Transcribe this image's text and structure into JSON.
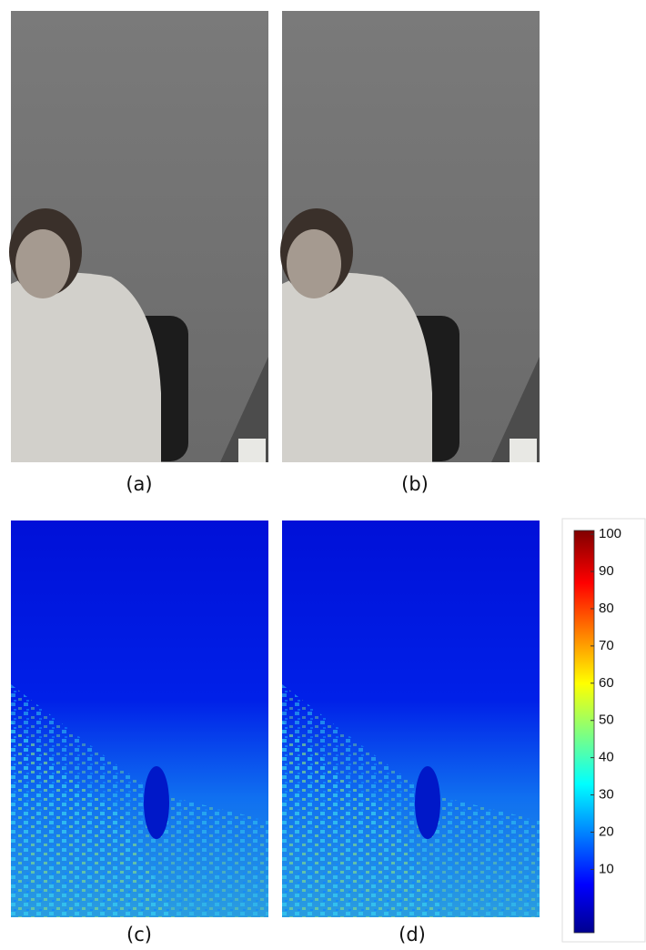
{
  "panels": [
    {
      "label": "(a)"
    },
    {
      "label": "(b)"
    },
    {
      "label": "(c)"
    },
    {
      "label": "(d)"
    }
  ],
  "colorbar": {
    "lim": [
      -7,
      101
    ],
    "ticks": [
      10,
      20,
      30,
      40,
      50,
      60,
      70,
      80,
      90,
      100
    ]
  }
}
